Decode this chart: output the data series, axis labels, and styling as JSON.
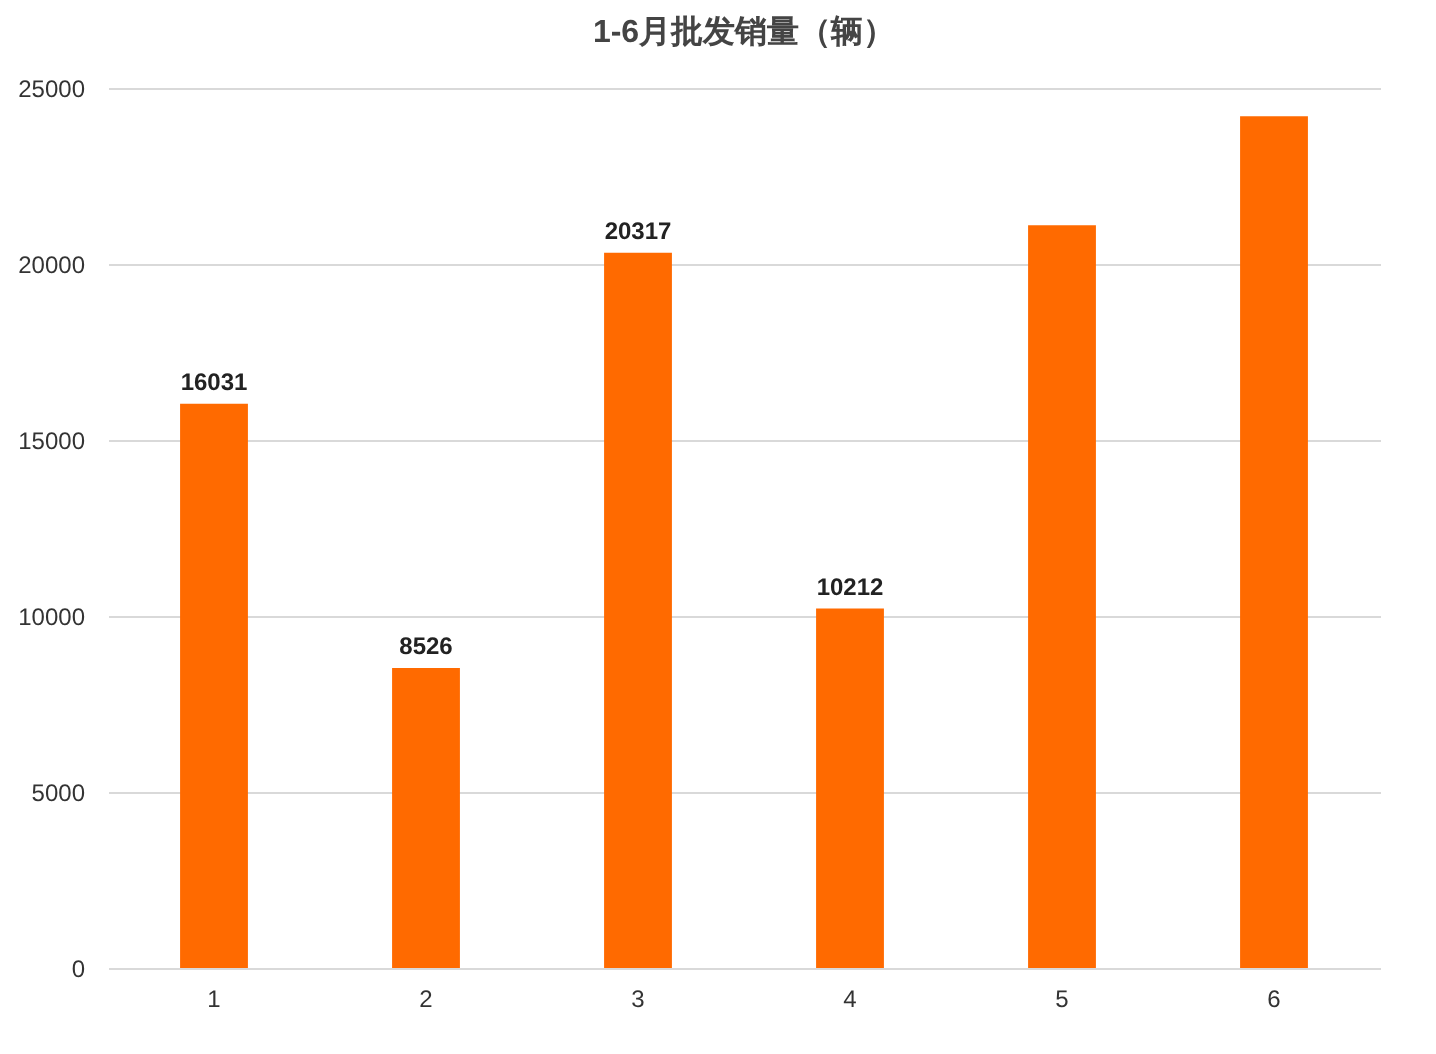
{
  "chart_data": {
    "type": "bar",
    "title": "1-6月批发销量（辆）",
    "categories": [
      "1",
      "2",
      "3",
      "4",
      "5",
      "6"
    ],
    "values": [
      16031,
      8526,
      20317,
      10212,
      21100,
      24200
    ],
    "value_labels": [
      "16031",
      "8526",
      "20317",
      "10212",
      null,
      null
    ],
    "color": "#ff6a00",
    "ylim": [
      0,
      25000
    ],
    "yticks": [
      0,
      5000,
      10000,
      15000,
      20000,
      25000
    ],
    "grid": "y"
  }
}
